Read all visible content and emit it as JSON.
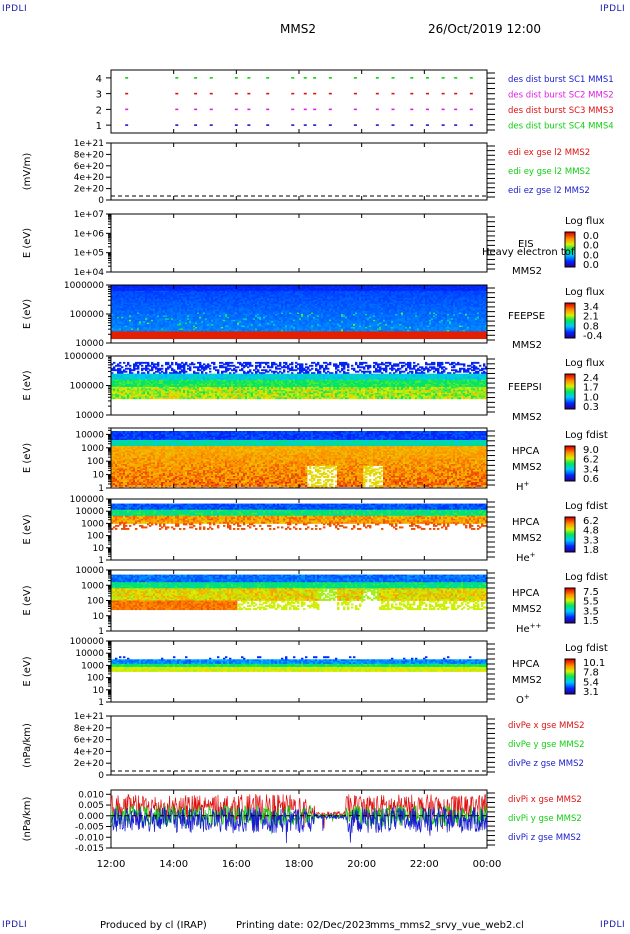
{
  "header": {
    "corner_left_top": "IPDLI",
    "corner_right_top": "IPDLI",
    "corner_left_bottom": "IPDLI",
    "corner_right_bottom": "IPDLI",
    "spacecraft": "MMS2",
    "datetime": "26/Oct/2019 12:00"
  },
  "footer": {
    "produced_by": "Produced by cl (IRAP)",
    "printing_date": "Printing date: 02/Dec/2023",
    "script_name": "mms_mms2_srvy_vue_web2.cl"
  },
  "colors": {
    "black": "#000000",
    "blue": "#1a1ad0",
    "magenta": "#e020e0",
    "red": "#e01010",
    "green": "#10d010",
    "axis": "#000000"
  },
  "chart_data": [
    {
      "type": "scatter",
      "id": "burst",
      "ylabel": "",
      "ylim": [
        0.5,
        4.5
      ],
      "yticks": [
        1,
        2,
        3,
        4
      ],
      "ytick_labels": [
        "1",
        "2",
        "3",
        "4"
      ],
      "legend": [
        {
          "label": "des dist burst SC1 MMS1",
          "color": "#1a1ad0"
        },
        {
          "label": "des dist burst SC2 MMS2",
          "color": "#e020e0"
        },
        {
          "label": "des dist burst SC3 MMS3",
          "color": "#e01010"
        },
        {
          "label": "des dist burst SC4 MMS4",
          "color": "#10d010"
        }
      ],
      "series": [
        {
          "level": 4,
          "color": "#10d010",
          "x": [
            12.5,
            14.1,
            14.7,
            15.2,
            16.0,
            16.4,
            17.0,
            17.8,
            18.2,
            18.5,
            19.0,
            19.8,
            20.5,
            21.0,
            21.6,
            22.1,
            22.6,
            23.0,
            23.5
          ]
        },
        {
          "level": 3,
          "color": "#e01010",
          "x": [
            12.5,
            14.1,
            14.7,
            15.2,
            16.0,
            16.4,
            17.0,
            17.8,
            18.2,
            18.5,
            19.0,
            19.8,
            20.5,
            21.0,
            21.6,
            22.1,
            22.6,
            23.0,
            23.5
          ]
        },
        {
          "level": 2,
          "color": "#e020e0",
          "x": [
            12.5,
            14.1,
            14.7,
            15.2,
            16.0,
            16.4,
            17.0,
            17.8,
            18.2,
            18.5,
            19.0,
            19.8,
            20.5,
            21.0,
            21.6,
            22.1,
            22.6,
            23.0,
            23.5
          ]
        },
        {
          "level": 1,
          "color": "#1a1ad0",
          "x": [
            12.5,
            14.1,
            14.7,
            15.2,
            16.0,
            16.4,
            17.0,
            17.8,
            18.2,
            18.5,
            19.0,
            19.8,
            20.5,
            21.0,
            21.6,
            22.1,
            22.6,
            23.0,
            23.5
          ]
        }
      ]
    },
    {
      "type": "line",
      "id": "edi",
      "ylabel": "(mV/m)",
      "ylim": [
        0,
        1e+21
      ],
      "ytick_labels": [
        "0",
        "2e+20",
        "4e+20",
        "6e+20",
        "8e+20",
        "1e+21"
      ],
      "legend": [
        {
          "label": "edi ex gse l2 MMS2",
          "color": "#e01010"
        },
        {
          "label": "edi ey gse l2 MMS2",
          "color": "#10d010"
        },
        {
          "label": "edi ez gse l2 MMS2",
          "color": "#1a1ad0"
        }
      ],
      "zero_line": true
    },
    {
      "type": "heatmap",
      "id": "eis",
      "ylabel": "E (eV)",
      "yscale": "log",
      "ylim": [
        10000.0,
        10000000.0
      ],
      "ytick_labels": [
        "1e+04",
        "1e+05",
        "1e+06",
        "1e+07"
      ],
      "instrument": "EIS",
      "overlay": "Heavy electron tof",
      "spacecraft": "MMS2",
      "cbar_title": "Log flux",
      "cbar_ticks": [
        "0.0",
        "0.0",
        "0.0",
        "0.0"
      ]
    },
    {
      "type": "heatmap",
      "id": "feepse",
      "ylabel": "E (eV)",
      "yscale": "log",
      "ylim": [
        10000.0,
        1000000.0
      ],
      "ytick_labels": [
        "10000",
        "100000",
        "1000000"
      ],
      "instrument": "FEEPSE",
      "spacecraft": "MMS2",
      "cbar_title": "Log flux",
      "cbar_ticks": [
        "3.4",
        "2.1",
        "0.8",
        "-0.4"
      ]
    },
    {
      "type": "heatmap",
      "id": "feepsi",
      "ylabel": "E (eV)",
      "yscale": "log",
      "ylim": [
        10000.0,
        1000000.0
      ],
      "ytick_labels": [
        "10000",
        "100000",
        "1000000"
      ],
      "instrument": "FEEPSI",
      "spacecraft": "MMS2",
      "cbar_title": "Log flux",
      "cbar_ticks": [
        "2.4",
        "1.7",
        "1.0",
        "0.3"
      ]
    },
    {
      "type": "heatmap",
      "id": "hpca_h",
      "ylabel": "E (eV)",
      "yscale": "log",
      "ylim": [
        1,
        30000
      ],
      "ytick_labels": [
        "1",
        "10",
        "100",
        "1000",
        "10000"
      ],
      "instrument": "HPCA",
      "spacecraft": "MMS2",
      "species": "H",
      "species_sup": "+",
      "cbar_title": "Log fdist",
      "cbar_ticks": [
        "9.0",
        "6.2",
        "3.4",
        "0.6"
      ]
    },
    {
      "type": "heatmap",
      "id": "hpca_he",
      "ylabel": "E (eV)",
      "yscale": "log",
      "ylim": [
        1,
        100000
      ],
      "ytick_labels": [
        "1",
        "10",
        "100",
        "1000",
        "10000",
        "100000"
      ],
      "instrument": "HPCA",
      "spacecraft": "MMS2",
      "species": "He",
      "species_sup": "+",
      "cbar_title": "Log fdist",
      "cbar_ticks": [
        "6.2",
        "4.8",
        "3.3",
        "1.8"
      ]
    },
    {
      "type": "heatmap",
      "id": "hpca_hepp",
      "ylabel": "E (eV)",
      "yscale": "log",
      "ylim": [
        1,
        10000
      ],
      "ytick_labels": [
        "1",
        "10",
        "100",
        "1000",
        "10000"
      ],
      "instrument": "HPCA",
      "spacecraft": "MMS2",
      "species": "He",
      "species_sup": "++",
      "cbar_title": "Log fdist",
      "cbar_ticks": [
        "7.5",
        "5.5",
        "3.5",
        "1.5"
      ]
    },
    {
      "type": "heatmap",
      "id": "hpca_o",
      "ylabel": "E (eV)",
      "yscale": "log",
      "ylim": [
        1,
        100000
      ],
      "ytick_labels": [
        "1",
        "10",
        "100",
        "1000",
        "10000",
        "100000"
      ],
      "instrument": "HPCA",
      "spacecraft": "MMS2",
      "species": "O",
      "species_sup": "+",
      "cbar_title": "Log fdist",
      "cbar_ticks": [
        "10.1",
        "7.8",
        "5.4",
        "3.1"
      ]
    },
    {
      "type": "line",
      "id": "divpe",
      "ylabel": "(nPa/km)",
      "ylim": [
        0,
        1e+21
      ],
      "ytick_labels": [
        "0",
        "2e+20",
        "4e+20",
        "6e+20",
        "8e+20",
        "1e+21"
      ],
      "legend": [
        {
          "label": "divPe x gse MMS2",
          "color": "#e01010"
        },
        {
          "label": "divPe y gse MMS2",
          "color": "#10d010"
        },
        {
          "label": "divPe z gse MMS2",
          "color": "#1a1ad0"
        }
      ],
      "zero_line": true
    },
    {
      "type": "line",
      "id": "divpi",
      "ylabel": "(nPa/km)",
      "ylim": [
        -0.015,
        0.012
      ],
      "ytick_labels": [
        "-0.015",
        "-0.010",
        "-0.005",
        "0.000",
        "0.005",
        "0.010"
      ],
      "yticks": [
        -0.015,
        -0.01,
        -0.005,
        0.0,
        0.005,
        0.01
      ],
      "legend": [
        {
          "label": "divPi x gse MMS2",
          "color": "#e01010"
        },
        {
          "label": "divPi y gse MMS2",
          "color": "#10d010"
        },
        {
          "label": "divPi z gse MMS2",
          "color": "#1a1ad0"
        }
      ],
      "series": [
        {
          "name": "divPi x gse MMS2",
          "color": "#e01010",
          "amplitude": 0.006,
          "offset": 0.004
        },
        {
          "name": "divPi y gse MMS2",
          "color": "#10d010",
          "amplitude": 0.005,
          "offset": 0.0
        },
        {
          "name": "divPi z gse MMS2",
          "color": "#1a1ad0",
          "amplitude": 0.006,
          "offset": -0.002
        }
      ]
    }
  ],
  "time_axis": {
    "range": [
      12,
      24
    ],
    "tick_values": [
      12,
      14,
      16,
      18,
      20,
      22,
      24
    ],
    "tick_labels": [
      "12:00",
      "14:00",
      "16:00",
      "18:00",
      "20:00",
      "22:00",
      "00:00"
    ]
  }
}
